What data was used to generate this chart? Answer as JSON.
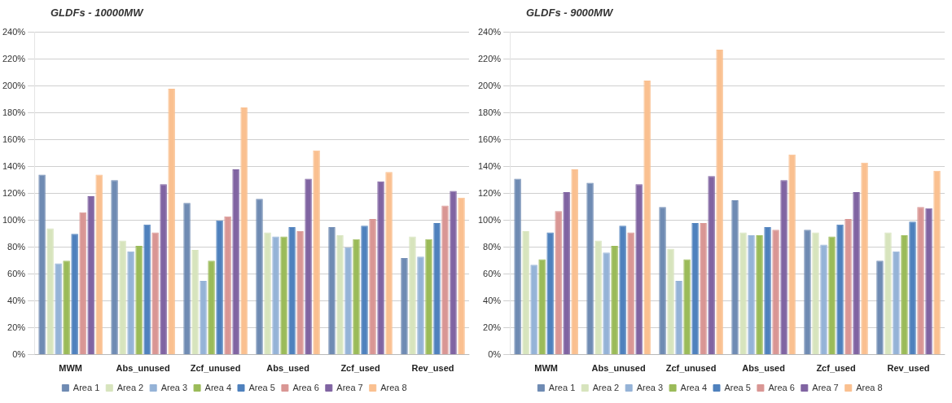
{
  "chart_data": [
    {
      "type": "bar",
      "title": "GLDFs - 10000MW",
      "categories": [
        "MWM",
        "Abs_unused",
        "Zcf_unused",
        "Abs_used",
        "Zcf_used",
        "Rev_used"
      ],
      "series": [
        {
          "name": "Area 1",
          "color": "#6f8bb3",
          "values": [
            134,
            130,
            113,
            116,
            95,
            72
          ]
        },
        {
          "name": "Area 2",
          "color": "#d7e4bd",
          "values": [
            94,
            85,
            78,
            91,
            89,
            88
          ]
        },
        {
          "name": "Area 3",
          "color": "#95b3d7",
          "values": [
            68,
            77,
            55,
            88,
            80,
            73
          ]
        },
        {
          "name": "Area 4",
          "color": "#9bbb59",
          "values": [
            70,
            81,
            70,
            88,
            86,
            86
          ]
        },
        {
          "name": "Area 5",
          "color": "#4f81bd",
          "values": [
            90,
            97,
            100,
            95,
            96,
            98
          ]
        },
        {
          "name": "Area 6",
          "color": "#d99694",
          "values": [
            106,
            91,
            103,
            92,
            101,
            111
          ]
        },
        {
          "name": "Area 7",
          "color": "#8064a2",
          "values": [
            118,
            127,
            138,
            131,
            129,
            122
          ]
        },
        {
          "name": "Area 8",
          "color": "#fac090",
          "values": [
            134,
            198,
            184,
            152,
            136,
            117
          ]
        }
      ],
      "ylim": [
        0,
        240
      ],
      "yticks": [
        {
          "value": 0,
          "label": "0%"
        },
        {
          "value": 20,
          "label": "20%"
        },
        {
          "value": 40,
          "label": "40%"
        },
        {
          "value": 60,
          "label": "60%"
        },
        {
          "value": 80,
          "label": "80%"
        },
        {
          "value": 100,
          "label": "100%"
        },
        {
          "value": 120,
          "label": "120%"
        },
        {
          "value": 140,
          "label": "140%"
        },
        {
          "value": 160,
          "label": "160%"
        },
        {
          "value": 180,
          "label": "180%"
        },
        {
          "value": 200,
          "label": "200%"
        },
        {
          "value": 220,
          "label": "220%"
        },
        {
          "value": 240,
          "label": "240%"
        }
      ],
      "grid": "y",
      "legend": "bottom"
    },
    {
      "type": "bar",
      "title": "GLDFs - 9000MW",
      "categories": [
        "MWM",
        "Abs_unused",
        "Zcf_unused",
        "Abs_used",
        "Zcf_used",
        "Rev_used"
      ],
      "series": [
        {
          "name": "Area 1",
          "color": "#6f8bb3",
          "values": [
            131,
            128,
            110,
            115,
            93,
            70
          ]
        },
        {
          "name": "Area 2",
          "color": "#d7e4bd",
          "values": [
            92,
            85,
            79,
            91,
            91,
            91
          ]
        },
        {
          "name": "Area 3",
          "color": "#95b3d7",
          "values": [
            67,
            76,
            55,
            89,
            82,
            77
          ]
        },
        {
          "name": "Area 4",
          "color": "#9bbb59",
          "values": [
            71,
            81,
            71,
            89,
            88,
            89
          ]
        },
        {
          "name": "Area 5",
          "color": "#4f81bd",
          "values": [
            91,
            96,
            98,
            95,
            97,
            99
          ]
        },
        {
          "name": "Area 6",
          "color": "#d99694",
          "values": [
            107,
            91,
            98,
            93,
            101,
            110
          ]
        },
        {
          "name": "Area 7",
          "color": "#8064a2",
          "values": [
            121,
            127,
            133,
            130,
            121,
            109
          ]
        },
        {
          "name": "Area 8",
          "color": "#fac090",
          "values": [
            138,
            204,
            227,
            149,
            143,
            137
          ]
        }
      ],
      "ylim": [
        0,
        240
      ],
      "yticks": [
        {
          "value": 0,
          "label": "0%"
        },
        {
          "value": 20,
          "label": "20%"
        },
        {
          "value": 40,
          "label": "40%"
        },
        {
          "value": 60,
          "label": "60%"
        },
        {
          "value": 80,
          "label": "80%"
        },
        {
          "value": 100,
          "label": "100%"
        },
        {
          "value": 120,
          "label": "120%"
        },
        {
          "value": 140,
          "label": "140%"
        },
        {
          "value": 160,
          "label": "160%"
        },
        {
          "value": 180,
          "label": "180%"
        },
        {
          "value": 200,
          "label": "200%"
        },
        {
          "value": 220,
          "label": "220%"
        },
        {
          "value": 240,
          "label": "240%"
        }
      ],
      "grid": "y",
      "legend": "bottom"
    }
  ]
}
